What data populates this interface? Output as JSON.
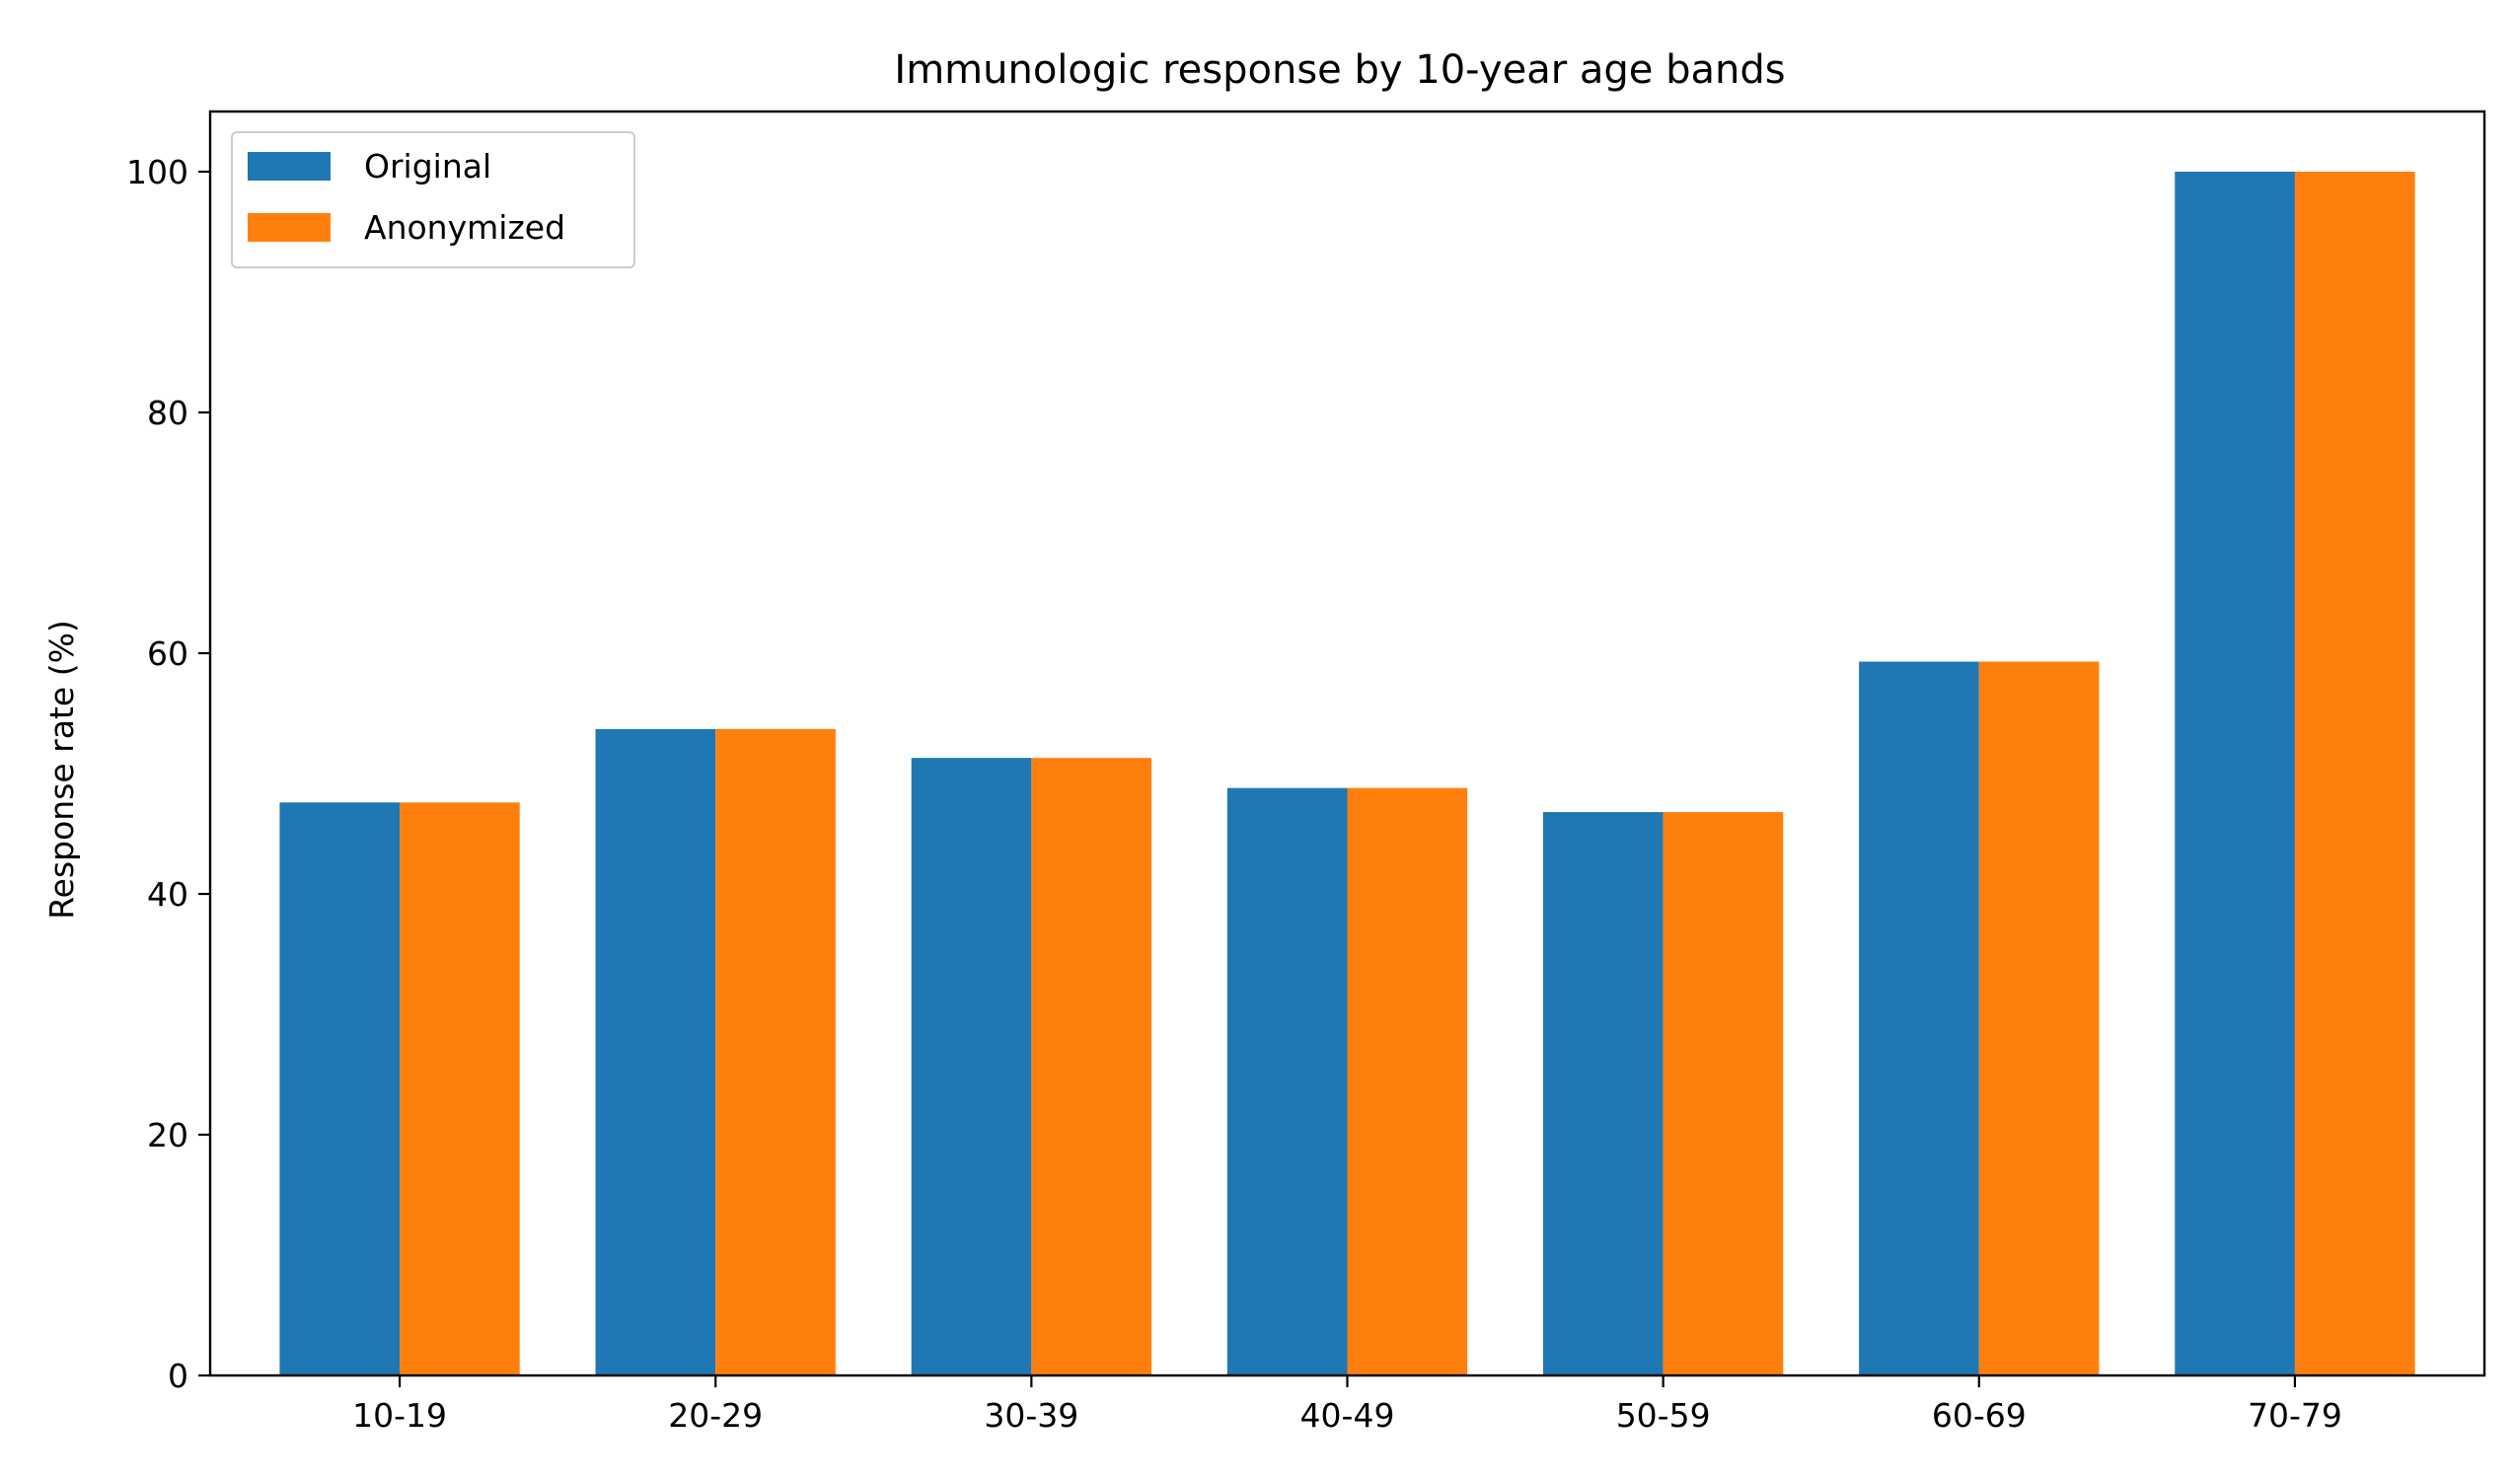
{
  "chart_data": {
    "type": "bar",
    "title": "Immunologic response by 10-year age bands",
    "xlabel": "",
    "ylabel": "Response rate (%)",
    "categories": [
      "10-19",
      "20-29",
      "30-39",
      "40-49",
      "50-59",
      "60-69",
      "70-79"
    ],
    "series": [
      {
        "name": "Original",
        "color": "#1f77b4",
        "values": [
          47.6,
          53.7,
          51.3,
          48.8,
          46.8,
          59.3,
          100.0
        ]
      },
      {
        "name": "Anonymized",
        "color": "#ff7f0e",
        "values": [
          47.6,
          53.7,
          51.3,
          48.8,
          46.8,
          59.3,
          100.0
        ]
      }
    ],
    "ylim": [
      0,
      105
    ],
    "yticks": [
      0,
      20,
      40,
      60,
      80,
      100
    ],
    "grid": false,
    "legend": "top-left"
  }
}
